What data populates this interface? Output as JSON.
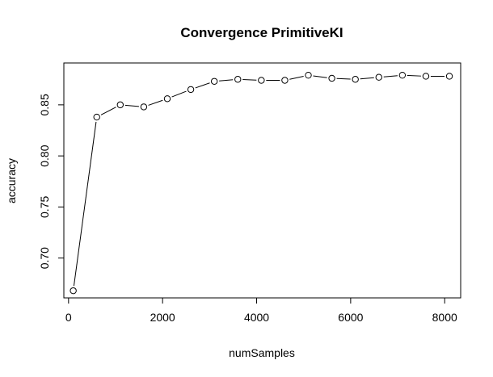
{
  "chart_data": {
    "type": "line",
    "title": "Convergence PrimitiveKI",
    "xlabel": "numSamples",
    "ylabel": "accuracy",
    "x": [
      100,
      600,
      1100,
      1600,
      2100,
      2600,
      3100,
      3600,
      4100,
      4600,
      5100,
      5600,
      6100,
      6600,
      7100,
      7600,
      8100
    ],
    "y": [
      0.668,
      0.838,
      0.85,
      0.848,
      0.856,
      0.865,
      0.873,
      0.875,
      0.874,
      0.874,
      0.879,
      0.876,
      0.875,
      0.877,
      0.879,
      0.878,
      0.878
    ],
    "xlim": [
      -100,
      8340
    ],
    "ylim": [
      0.661,
      0.891
    ],
    "xticks": [
      0,
      2000,
      4000,
      6000,
      8000
    ],
    "xtick_labels": [
      "0",
      "2000",
      "4000",
      "6000",
      "8000"
    ],
    "yticks": [
      0.7,
      0.75,
      0.8,
      0.85
    ],
    "ytick_labels": [
      "0.70",
      "0.75",
      "0.80",
      "0.85"
    ],
    "marker": "open-circle",
    "grid": false,
    "legend": "none",
    "colors": {
      "line": "#000000",
      "background": "#ffffff"
    }
  }
}
